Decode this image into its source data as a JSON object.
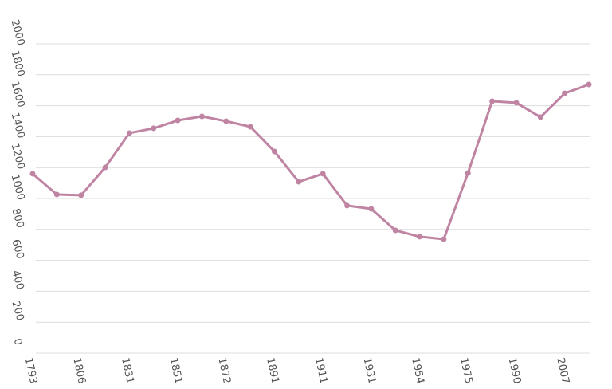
{
  "chart_data": {
    "type": "line",
    "categories": [
      "1793",
      null,
      "1806",
      null,
      "1831",
      null,
      "1851",
      null,
      "1872",
      null,
      "1891",
      null,
      "1911",
      null,
      "1931",
      null,
      "1954",
      null,
      "1975",
      null,
      "1990",
      null,
      "2007",
      null
    ],
    "values": [
      1160,
      1026,
      1021,
      1201,
      1423,
      1454,
      1505,
      1531,
      1500,
      1464,
      1304,
      1108,
      1160,
      954,
      933,
      794,
      753,
      737,
      1165,
      1629,
      1619,
      1526,
      1680,
      1737
    ],
    "color": "#c084a3",
    "ylim": [
      0,
      2000
    ],
    "yticks": [
      0,
      200,
      400,
      600,
      800,
      1000,
      1200,
      1400,
      1600,
      1800,
      2000
    ],
    "grid": true
  }
}
